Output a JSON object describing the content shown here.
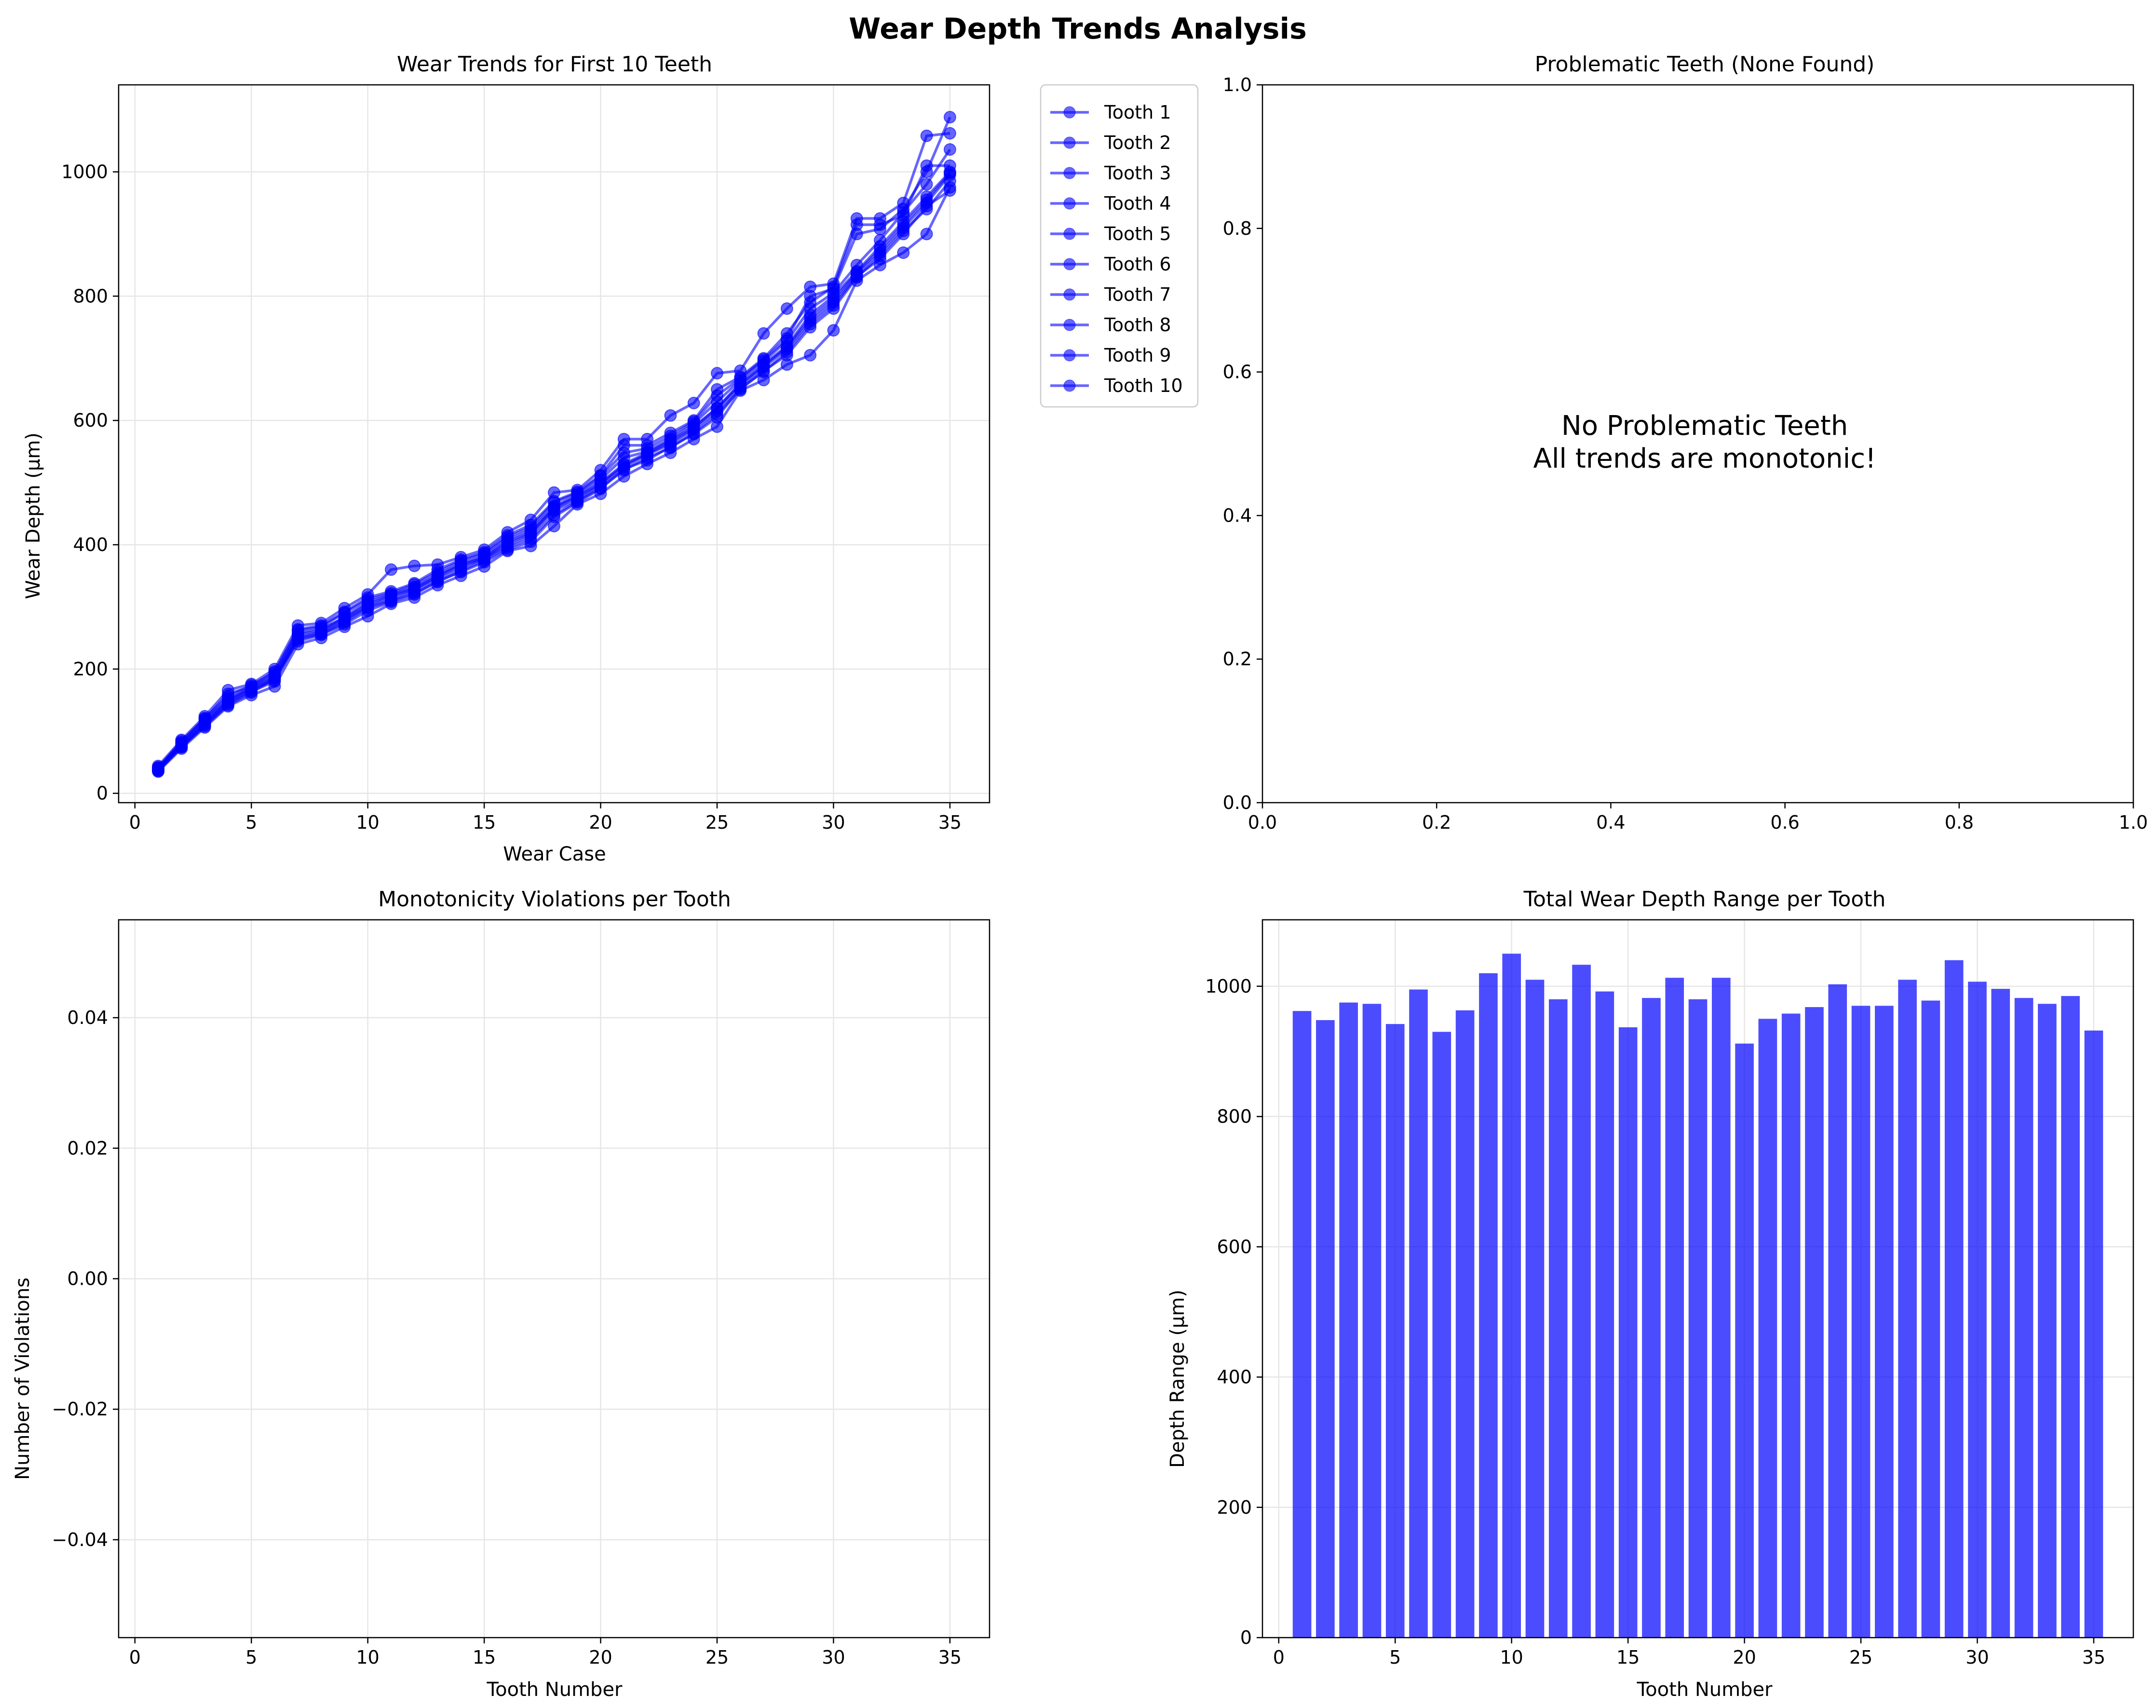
{
  "title": "Wear Depth Trends Analysis",
  "colors": {
    "series": "#0000ff",
    "grid": "#e6e6e6",
    "axes": "#000000"
  },
  "chart_data": [
    {
      "type": "line",
      "title": "Wear Trends for First 10 Teeth",
      "xlabel": "Wear Case",
      "ylabel": "Wear Depth (µm)",
      "xlim": [
        -0.7,
        36.7
      ],
      "ylim": [
        -15,
        1140
      ],
      "xticks": [
        0,
        5,
        10,
        15,
        20,
        25,
        30,
        35
      ],
      "yticks": [
        0,
        200,
        400,
        600,
        800,
        1000
      ],
      "grid": true,
      "legend_position": "outside right",
      "x": [
        1,
        2,
        3,
        4,
        5,
        6,
        7,
        8,
        9,
        10,
        11,
        12,
        13,
        14,
        15,
        16,
        17,
        18,
        19,
        20,
        21,
        22,
        23,
        24,
        25,
        26,
        27,
        28,
        29,
        30,
        31,
        32,
        33,
        34,
        35
      ],
      "series": [
        {
          "name": "Tooth 1",
          "values": [
            40,
            80,
            118,
            150,
            170,
            190,
            258,
            265,
            282,
            305,
            318,
            330,
            350,
            368,
            380,
            405,
            420,
            460,
            478,
            500,
            530,
            548,
            568,
            590,
            620,
            660,
            690,
            720,
            770,
            800,
            840,
            880,
            920,
            960,
            1000
          ]
        },
        {
          "name": "Tooth 2",
          "values": [
            36,
            74,
            108,
            142,
            162,
            185,
            245,
            255,
            275,
            298,
            310,
            322,
            340,
            358,
            375,
            395,
            410,
            448,
            470,
            492,
            520,
            540,
            556,
            580,
            610,
            650,
            680,
            705,
            750,
            780,
            830,
            865,
            905,
            940,
            985
          ]
        },
        {
          "name": "Tooth 3",
          "values": [
            44,
            86,
            124,
            166,
            176,
            200,
            270,
            274,
            298,
            320,
            360,
            366,
            368,
            380,
            392,
            420,
            440,
            484,
            488,
            520,
            570,
            570,
            608,
            628,
            676,
            680,
            740,
            780,
            815,
            820,
            925,
            925,
            950,
            1058,
            1062
          ]
        },
        {
          "name": "Tooth 4",
          "values": [
            38,
            78,
            112,
            148,
            168,
            182,
            250,
            258,
            278,
            300,
            312,
            326,
            345,
            362,
            378,
            398,
            415,
            455,
            472,
            496,
            525,
            545,
            562,
            585,
            615,
            655,
            685,
            715,
            760,
            790,
            835,
            870,
            910,
            950,
            995
          ]
        },
        {
          "name": "Tooth 5",
          "values": [
            42,
            82,
            120,
            160,
            172,
            196,
            264,
            270,
            292,
            315,
            325,
            338,
            360,
            376,
            388,
            415,
            432,
            470,
            485,
            512,
            560,
            560,
            580,
            600,
            650,
            670,
            700,
            740,
            790,
            815,
            915,
            915,
            930,
            1010,
            1010
          ]
        },
        {
          "name": "Tooth 6",
          "values": [
            35,
            72,
            106,
            140,
            158,
            172,
            240,
            250,
            268,
            285,
            305,
            315,
            335,
            350,
            365,
            390,
            398,
            430,
            465,
            482,
            510,
            530,
            548,
            570,
            590,
            648,
            665,
            690,
            705,
            745,
            825,
            850,
            870,
            900,
            975
          ]
        },
        {
          "name": "Tooth 7",
          "values": [
            40,
            80,
            115,
            152,
            170,
            188,
            256,
            262,
            284,
            308,
            320,
            332,
            352,
            370,
            382,
            408,
            424,
            462,
            480,
            505,
            540,
            550,
            570,
            595,
            630,
            665,
            695,
            728,
            780,
            805,
            850,
            890,
            935,
            980,
            1036
          ]
        },
        {
          "name": "Tooth 8",
          "values": [
            39,
            76,
            112,
            146,
            166,
            186,
            252,
            260,
            280,
            302,
            316,
            328,
            348,
            366,
            378,
            402,
            418,
            458,
            476,
            498,
            528,
            546,
            565,
            588,
            620,
            658,
            688,
            718,
            765,
            795,
            838,
            875,
            915,
            955,
            998
          ]
        },
        {
          "name": "Tooth 9",
          "values": [
            41,
            84,
            121,
            156,
            174,
            194,
            262,
            268,
            290,
            312,
            322,
            336,
            356,
            374,
            386,
            412,
            428,
            468,
            483,
            510,
            548,
            555,
            575,
            598,
            640,
            668,
            698,
            732,
            800,
            812,
            900,
            908,
            940,
            1000,
            1088
          ]
        },
        {
          "name": "Tooth 10",
          "values": [
            37,
            75,
            110,
            144,
            164,
            180,
            248,
            256,
            272,
            294,
            308,
            320,
            342,
            356,
            372,
            392,
            405,
            445,
            468,
            490,
            522,
            536,
            558,
            578,
            605,
            652,
            678,
            710,
            755,
            785,
            832,
            860,
            900,
            945,
            970
          ]
        }
      ]
    },
    {
      "type": "scatter",
      "title": "Problematic Teeth (None Found)",
      "xlim": [
        0,
        1
      ],
      "ylim": [
        0,
        1
      ],
      "xticks": [
        "0.0",
        "0.2",
        "0.4",
        "0.6",
        "0.8",
        "1.0"
      ],
      "yticks": [
        "0.0",
        "0.2",
        "0.4",
        "0.6",
        "0.8",
        "1.0"
      ],
      "grid": false,
      "annotation_lines": [
        "No Problematic Teeth",
        "All trends are monotonic!"
      ]
    },
    {
      "type": "bar",
      "title": "Monotonicity Violations per Tooth",
      "xlabel": "Tooth Number",
      "ylabel": "Number of Violations",
      "xlim": [
        -0.7,
        36.7
      ],
      "ylim": [
        -0.055,
        0.055
      ],
      "xticks": [
        0,
        5,
        10,
        15,
        20,
        25,
        30,
        35
      ],
      "yticks": [
        "−0.04",
        "−0.02",
        "0.00",
        "0.02",
        "0.04"
      ],
      "ytick_values": [
        -0.04,
        -0.02,
        0.0,
        0.02,
        0.04
      ],
      "grid": true,
      "categories": [
        1,
        2,
        3,
        4,
        5,
        6,
        7,
        8,
        9,
        10,
        11,
        12,
        13,
        14,
        15,
        16,
        17,
        18,
        19,
        20,
        21,
        22,
        23,
        24,
        25,
        26,
        27,
        28,
        29,
        30,
        31,
        32,
        33,
        34,
        35
      ],
      "values": [
        0,
        0,
        0,
        0,
        0,
        0,
        0,
        0,
        0,
        0,
        0,
        0,
        0,
        0,
        0,
        0,
        0,
        0,
        0,
        0,
        0,
        0,
        0,
        0,
        0,
        0,
        0,
        0,
        0,
        0,
        0,
        0,
        0,
        0,
        0
      ]
    },
    {
      "type": "bar",
      "title": "Total Wear Depth Range per Tooth",
      "xlabel": "Tooth Number",
      "ylabel": "Depth Range (µm)",
      "xlim": [
        -0.7,
        36.7
      ],
      "ylim": [
        0,
        1102
      ],
      "xticks": [
        0,
        5,
        10,
        15,
        20,
        25,
        30,
        35
      ],
      "yticks": [
        0,
        200,
        400,
        600,
        800,
        1000
      ],
      "grid": true,
      "categories": [
        1,
        2,
        3,
        4,
        5,
        6,
        7,
        8,
        9,
        10,
        11,
        12,
        13,
        14,
        15,
        16,
        17,
        18,
        19,
        20,
        21,
        22,
        23,
        24,
        25,
        26,
        27,
        28,
        29,
        30,
        31,
        32,
        33,
        34,
        35
      ],
      "values": [
        962,
        948,
        975,
        973,
        942,
        995,
        930,
        963,
        1020,
        1050,
        1010,
        980,
        1033,
        992,
        937,
        982,
        1013,
        980,
        1013,
        912,
        950,
        958,
        968,
        1003,
        970,
        970,
        1010,
        978,
        1040,
        1007,
        996,
        982,
        973,
        985,
        932
      ]
    }
  ]
}
